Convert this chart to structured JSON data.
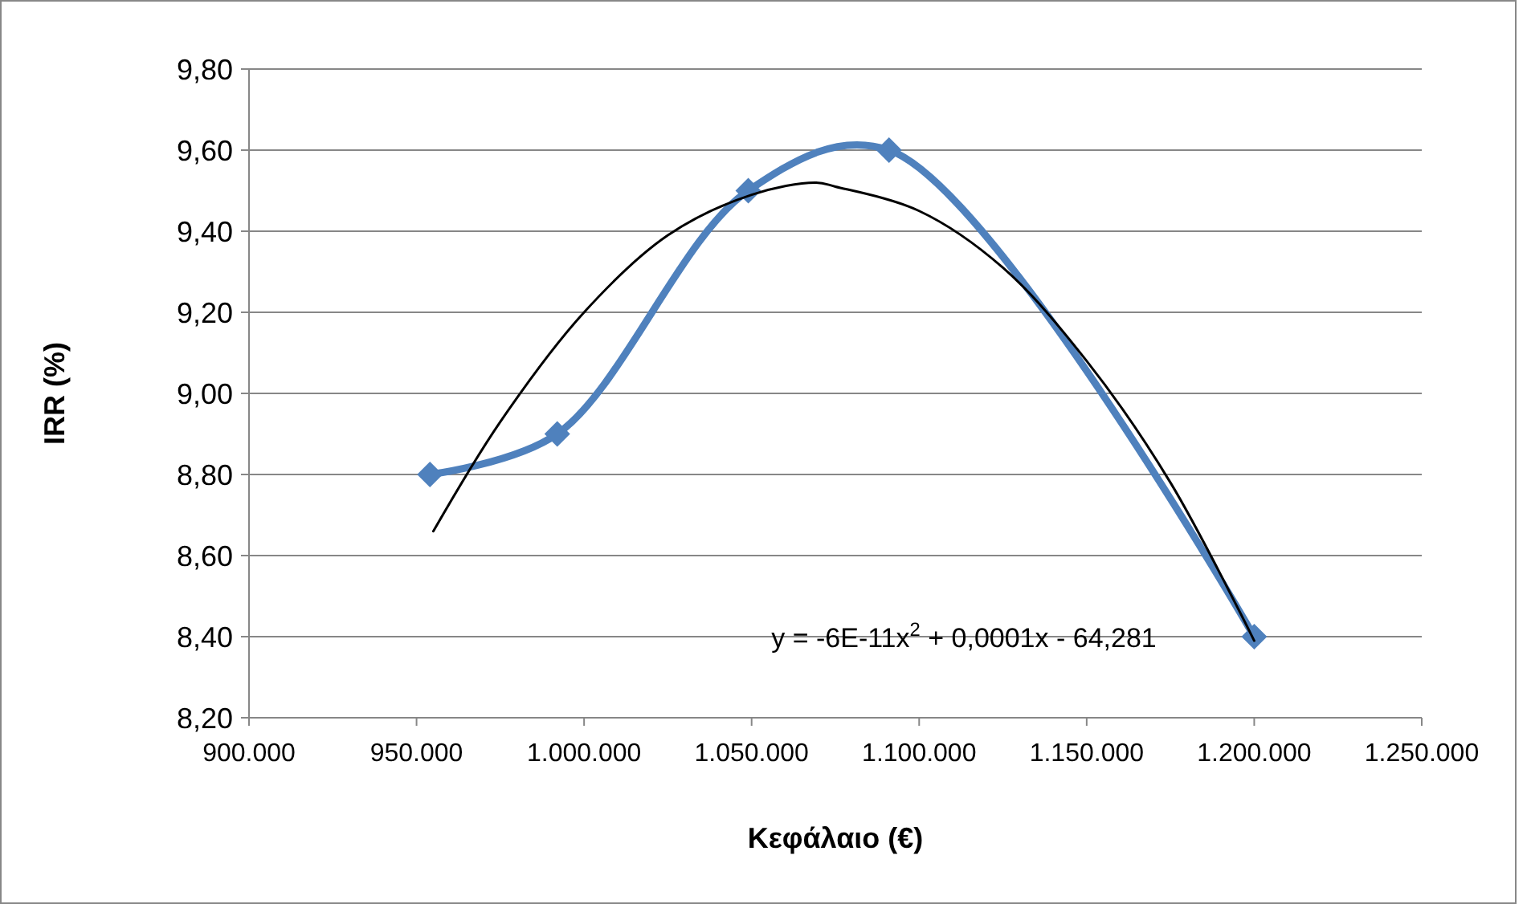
{
  "chart_data": {
    "type": "line",
    "xlabel": "Κεφάλαιο (€)",
    "ylabel": "IRR (%)",
    "xlim": [
      900000,
      1250000
    ],
    "xticks": [
      {
        "value": 900000,
        "label": "900.000"
      },
      {
        "value": 950000,
        "label": "950.000"
      },
      {
        "value": 1000000,
        "label": "1.000.000"
      },
      {
        "value": 1050000,
        "label": "1.050.000"
      },
      {
        "value": 1100000,
        "label": "1.100.000"
      },
      {
        "value": 1150000,
        "label": "1.150.000"
      },
      {
        "value": 1200000,
        "label": "1.200.000"
      },
      {
        "value": 1250000,
        "label": "1.250.000"
      }
    ],
    "ylim": [
      8.2,
      9.8
    ],
    "yticks": [
      {
        "value": 8.2,
        "label": "8,20"
      },
      {
        "value": 8.4,
        "label": "8,40"
      },
      {
        "value": 8.6,
        "label": "8,60"
      },
      {
        "value": 8.8,
        "label": "8,80"
      },
      {
        "value": 9.0,
        "label": "9,00"
      },
      {
        "value": 9.2,
        "label": "9,20"
      },
      {
        "value": 9.4,
        "label": "9,40"
      },
      {
        "value": 9.6,
        "label": "9,60"
      },
      {
        "value": 9.8,
        "label": "9,80"
      }
    ],
    "grid": "y",
    "series": [
      {
        "color": "#4f81bd",
        "marker": "diamond",
        "x": [
          954000,
          992000,
          1049000,
          1091000,
          1200000
        ],
        "values": [
          8.8,
          8.9,
          9.5,
          9.6,
          8.4
        ]
      },
      {
        "color": "#000000",
        "marker": "none",
        "x": [
          955000,
          975000,
          1000000,
          1025000,
          1050000,
          1069000,
          1075000,
          1100000,
          1125000,
          1150000,
          1175000,
          1200000
        ],
        "values": [
          8.66,
          8.93,
          9.2,
          9.39,
          9.49,
          9.52,
          9.51,
          9.45,
          9.31,
          9.08,
          8.78,
          8.39
        ]
      }
    ],
    "annotations": [
      "y = -6E-11x$^{2}$ + 0,0001x - 64,281"
    ]
  }
}
